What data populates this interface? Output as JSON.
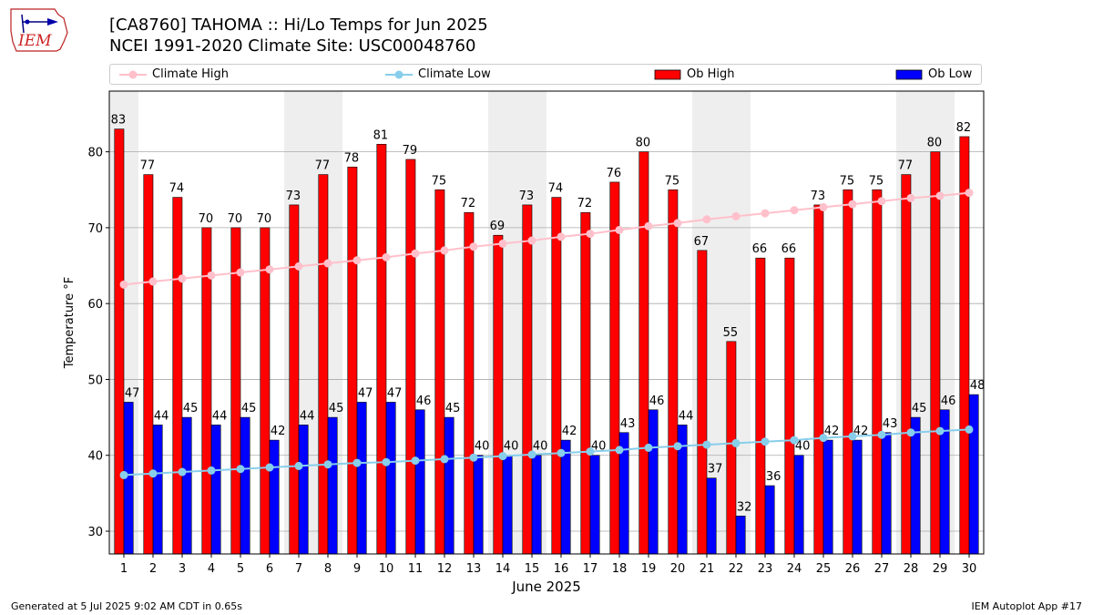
{
  "header": {
    "title_line1": "[CA8760] TAHOMA :: Hi/Lo Temps for Jun 2025",
    "title_line2": "NCEI 1991-2020 Climate Site: USC00048760",
    "logo_text": "IEM"
  },
  "legend": {
    "climate_high": "Climate High",
    "climate_low": "Climate Low",
    "ob_high": "Ob High",
    "ob_low": "Ob Low"
  },
  "footer": {
    "generated": "Generated at 5 Jul 2025 9:02 AM CDT in 0.65s",
    "app": "IEM Autoplot App #17"
  },
  "colors": {
    "ob_high": "#ff0000",
    "ob_low": "#0000ff",
    "climate_high": "#ffc0cb",
    "climate_low": "#87ceeb",
    "weekend_band": "#eeeeee",
    "grid": "#aaaaaa"
  },
  "chart_data": {
    "type": "bar",
    "xlabel": "June 2025",
    "ylabel": "Temperature °F",
    "ylim": [
      27,
      88
    ],
    "yticks": [
      30,
      40,
      50,
      60,
      70,
      80
    ],
    "categories": [
      "1",
      "2",
      "3",
      "4",
      "5",
      "6",
      "7",
      "8",
      "9",
      "10",
      "11",
      "12",
      "13",
      "14",
      "15",
      "16",
      "17",
      "18",
      "19",
      "20",
      "21",
      "22",
      "23",
      "24",
      "25",
      "26",
      "27",
      "28",
      "29",
      "30"
    ],
    "shaded_days": [
      1,
      7,
      8,
      14,
      15,
      21,
      22,
      28,
      29
    ],
    "grid": true,
    "legend_position": "top",
    "series": [
      {
        "name": "Ob High",
        "kind": "bar",
        "values": [
          83,
          77,
          74,
          70,
          70,
          70,
          73,
          77,
          78,
          81,
          79,
          75,
          72,
          69,
          73,
          74,
          72,
          76,
          80,
          75,
          67,
          55,
          66,
          66,
          73,
          75,
          75,
          77,
          80,
          82
        ]
      },
      {
        "name": "Ob Low",
        "kind": "bar",
        "values": [
          47,
          44,
          45,
          44,
          45,
          42,
          44,
          45,
          47,
          47,
          46,
          45,
          40,
          40,
          40,
          42,
          40,
          43,
          46,
          44,
          37,
          32,
          36,
          40,
          42,
          42,
          43,
          45,
          46,
          48
        ]
      },
      {
        "name": "Climate High",
        "kind": "line",
        "values": [
          62.5,
          62.9,
          63.3,
          63.7,
          64.1,
          64.5,
          64.9,
          65.3,
          65.7,
          66.1,
          66.6,
          67.0,
          67.5,
          67.9,
          68.3,
          68.8,
          69.2,
          69.7,
          70.2,
          70.6,
          71.1,
          71.5,
          71.9,
          72.3,
          72.7,
          73.1,
          73.5,
          73.9,
          74.2,
          74.6
        ]
      },
      {
        "name": "Climate Low",
        "kind": "line",
        "values": [
          37.4,
          37.6,
          37.8,
          38.0,
          38.2,
          38.4,
          38.6,
          38.8,
          39.0,
          39.1,
          39.3,
          39.5,
          39.7,
          39.9,
          40.1,
          40.3,
          40.5,
          40.7,
          41.0,
          41.2,
          41.4,
          41.6,
          41.8,
          42.0,
          42.3,
          42.5,
          42.7,
          43.0,
          43.2,
          43.4
        ]
      }
    ]
  }
}
